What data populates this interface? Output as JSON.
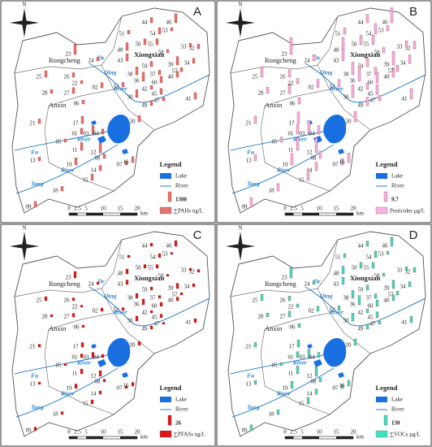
{
  "north": "N",
  "places": {
    "rongcheng": "Rongcheng",
    "xiongxian": "Xiongxian",
    "anxin": "Anxin"
  },
  "rivers": {
    "de": "De",
    "qing": "Qing",
    "river1": "River",
    "fu": "Fu",
    "river2": "River",
    "tang": "Tang",
    "river3": "River"
  },
  "scale": {
    "ticks": [
      0,
      2.5,
      5,
      10,
      15,
      20
    ],
    "unit": "km"
  },
  "legend": {
    "title": "Legend",
    "lake": "Lake",
    "river": "River"
  },
  "panels": [
    {
      "letter": "A",
      "legend_value": 1300,
      "unit": "∑PAHs ng/L",
      "color": "#e8736c"
    },
    {
      "letter": "B",
      "legend_value": 9.7,
      "unit": "Pesticides μg/L",
      "color": "#f5b3e3"
    },
    {
      "letter": "C",
      "legend_value": 26,
      "unit": "∑PFASs ng/L",
      "color": "#e01818"
    },
    {
      "letter": "D",
      "legend_value": 130,
      "unit": "∑VOCs μg/L",
      "color": "#3fe0c0"
    }
  ],
  "sites": [
    "44",
    "46",
    "51",
    "54",
    "53",
    "50",
    "48",
    "23",
    "32",
    "24",
    "43",
    "55",
    "58",
    "39",
    "34",
    "33",
    "25",
    "26",
    "27",
    "28",
    "02",
    "22",
    "38",
    "37",
    "40",
    "57",
    "60",
    "59",
    "36",
    "52",
    "30",
    "42",
    "45",
    "47",
    "49",
    "41",
    "06",
    "17",
    "21",
    "01",
    "03",
    "04",
    "20",
    "05",
    "11",
    "12",
    "08",
    "07",
    "16",
    "19",
    "14",
    "13",
    "15",
    "18",
    "09"
  ]
}
